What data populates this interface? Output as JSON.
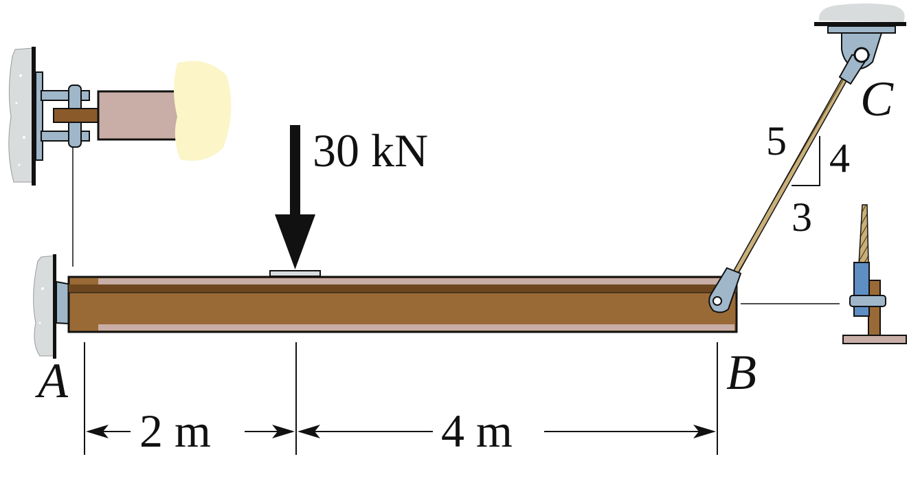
{
  "labels": {
    "point_a": "A",
    "point_b": "B",
    "point_c": "C",
    "load": "30 kN",
    "slope_hyp": "5",
    "slope_rise": "4",
    "slope_run": "3",
    "dim_left": "2 m",
    "dim_right": "4 m"
  },
  "colors": {
    "beam": "#9a6a36",
    "beam_dark": "#6e4720",
    "steel": "#9fb7c9",
    "concrete": "#d9dcdc",
    "glow": "#fbf5c8",
    "member": "#c8aea6",
    "bracket_blue": "#5e8fc4",
    "rope": "#c9b07a"
  },
  "icons": [
    "pin-support-a",
    "cable-bracket-c",
    "cable-end-b",
    "detail-pin-a",
    "detail-cable-b"
  ]
}
